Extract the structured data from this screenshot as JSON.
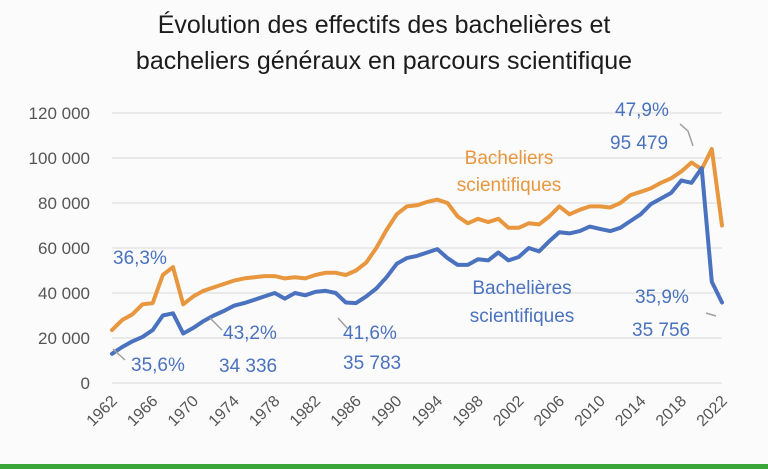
{
  "chart_data": {
    "type": "line",
    "title_lines": [
      "Évolution des effectifs des bachelières et",
      "bacheliers généraux en parcours scientifique"
    ],
    "xlabel": "",
    "ylabel": "",
    "xlim": [
      1962,
      2022
    ],
    "ylim": [
      0,
      120000
    ],
    "x_ticks": [
      "1962",
      "1966",
      "1970",
      "1974",
      "1978",
      "1982",
      "1986",
      "1990",
      "1994",
      "1998",
      "2002",
      "2006",
      "2010",
      "2014",
      "2018",
      "2022"
    ],
    "y_ticks": [
      "0",
      "20 000",
      "40 000",
      "60 000",
      "80 000",
      "100 000",
      "120 000"
    ],
    "y_tick_values": [
      0,
      20000,
      40000,
      60000,
      80000,
      100000,
      120000
    ],
    "grid": "horizontal",
    "colors": {
      "bacheliers": "#e8973f",
      "bachelieres": "#4a72be",
      "grid": "#d9d9d9",
      "axis_text": "#555555",
      "leader": "#a0a0a0"
    },
    "x": [
      1962,
      1963,
      1964,
      1965,
      1966,
      1967,
      1968,
      1969,
      1970,
      1971,
      1972,
      1973,
      1974,
      1975,
      1976,
      1977,
      1978,
      1979,
      1980,
      1981,
      1982,
      1983,
      1984,
      1985,
      1986,
      1987,
      1988,
      1989,
      1990,
      1991,
      1992,
      1993,
      1994,
      1995,
      1996,
      1997,
      1998,
      1999,
      2000,
      2001,
      2002,
      2003,
      2004,
      2005,
      2006,
      2007,
      2008,
      2009,
      2010,
      2011,
      2012,
      2013,
      2014,
      2015,
      2016,
      2017,
      2018,
      2019,
      2020,
      2021,
      2022
    ],
    "series": [
      {
        "name": "Bacheliers scientifiques",
        "label_lines": [
          "Bacheliers",
          "scientifiques"
        ],
        "values": [
          23500,
          28000,
          30500,
          35000,
          35500,
          48000,
          51500,
          35000,
          38500,
          41000,
          42500,
          44000,
          45500,
          46500,
          47000,
          47500,
          47500,
          46500,
          47000,
          46500,
          48000,
          49000,
          49000,
          48000,
          50000,
          53500,
          60000,
          68000,
          75000,
          78500,
          79000,
          80500,
          81500,
          80000,
          74000,
          71000,
          73000,
          71500,
          73000,
          69000,
          69000,
          71000,
          70500,
          74000,
          78500,
          75000,
          77000,
          78500,
          78500,
          78000,
          80000,
          83500,
          85000,
          86500,
          89000,
          91000,
          94000,
          98000,
          95000,
          104000,
          70000
        ]
      },
      {
        "name": "Bachelières scientifiques",
        "label_lines": [
          "Bachelières",
          "scientifiques"
        ],
        "values": [
          13000,
          16000,
          18500,
          20500,
          23500,
          30000,
          31000,
          22000,
          24500,
          27500,
          30000,
          32000,
          34336,
          35500,
          37000,
          38500,
          40000,
          37500,
          40000,
          39000,
          40500,
          41000,
          40000,
          35783,
          35500,
          38500,
          42000,
          47000,
          53000,
          55500,
          56500,
          58000,
          59500,
          55500,
          52500,
          52500,
          55000,
          54500,
          58000,
          54500,
          56000,
          60000,
          58500,
          63000,
          67000,
          66500,
          67500,
          69500,
          68500,
          67500,
          69000,
          72000,
          75000,
          79500,
          82000,
          84500,
          90000,
          89000,
          95479,
          45000,
          35756
        ]
      }
    ],
    "annotations": [
      {
        "text": "36,3%"
      },
      {
        "text": "35,6%"
      },
      {
        "text": "43,2%"
      },
      {
        "text": "34 336"
      },
      {
        "text": "41,6%"
      },
      {
        "text": "35 783"
      },
      {
        "text": "47,9%"
      },
      {
        "text": "95 479"
      },
      {
        "text": "35,9%"
      },
      {
        "text": "35 756"
      }
    ]
  }
}
